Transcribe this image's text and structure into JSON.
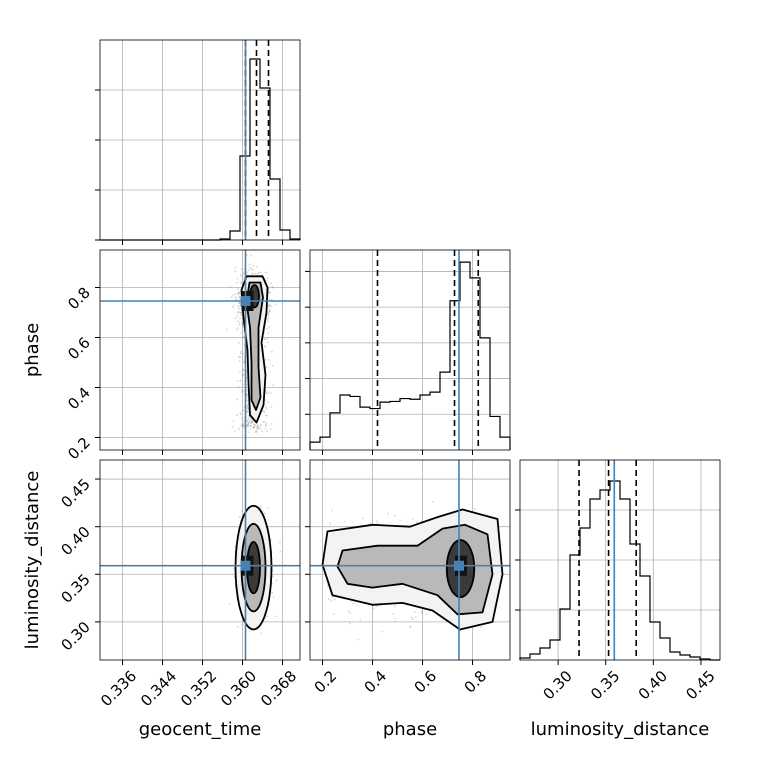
{
  "chart_data": {
    "type": "corner",
    "colors": {
      "truth": "#4682b4",
      "hist": "#000000",
      "grid": "#b0b0b0",
      "points": "#8a8a8a"
    },
    "params": [
      {
        "name": "geocent_time",
        "label": "geocent_time",
        "lim": [
          0.3315,
          0.3715
        ],
        "ticks": [
          0.336,
          0.344,
          0.352,
          0.36,
          0.368
        ],
        "tick_labels": [
          "0.336",
          "0.344",
          "0.352",
          "0.360",
          "0.368"
        ],
        "truth": 0.3606,
        "quantiles": [
          0.3606,
          0.3628,
          0.3652
        ]
      },
      {
        "name": "phase",
        "label": "phase",
        "lim": [
          0.15,
          0.95
        ],
        "ticks": [
          0.2,
          0.4,
          0.6,
          0.8
        ],
        "tick_labels": [
          "0.2",
          "0.4",
          "0.6",
          "0.8"
        ],
        "truth": 0.746,
        "quantiles": [
          0.42,
          0.728,
          0.823
        ]
      },
      {
        "name": "luminosity_distance",
        "label": "luminosity_distance",
        "lim": [
          0.26,
          0.47
        ],
        "ticks": [
          0.3,
          0.35,
          0.4,
          0.45
        ],
        "tick_labels": [
          "0.30",
          "0.35",
          "0.40",
          "0.45"
        ],
        "truth": 0.359,
        "quantiles": [
          0.322,
          0.353,
          0.382
        ]
      }
    ],
    "histograms": {
      "geocent_time": {
        "edges": [
          0.3315,
          0.3335,
          0.3355,
          0.3375,
          0.3395,
          0.3415,
          0.3435,
          0.3455,
          0.3475,
          0.3495,
          0.3515,
          0.3535,
          0.3555,
          0.3575,
          0.3595,
          0.3615,
          0.3635,
          0.3655,
          0.3675,
          0.3695,
          0.3715
        ],
        "counts": [
          0,
          0,
          0,
          0,
          0,
          0,
          0,
          0,
          0,
          0,
          0,
          0,
          1,
          9,
          84,
          181,
          152,
          61,
          10,
          1
        ],
        "ymax": 200,
        "yticks": [
          0,
          50,
          100,
          150
        ]
      },
      "phase": {
        "edges": [
          0.15,
          0.19,
          0.23,
          0.27,
          0.31,
          0.35,
          0.39,
          0.43,
          0.47,
          0.51,
          0.55,
          0.59,
          0.63,
          0.67,
          0.71,
          0.75,
          0.79,
          0.83,
          0.87,
          0.91,
          0.95
        ],
        "counts": [
          11,
          18,
          52,
          77,
          75,
          60,
          58,
          67,
          68,
          72,
          71,
          77,
          81,
          109,
          209,
          263,
          241,
          157,
          47,
          18
        ],
        "ymax": 280,
        "yticks": [
          50,
          100,
          150,
          200,
          250
        ]
      },
      "luminosity_distance": {
        "edges": [
          0.26,
          0.2705,
          0.281,
          0.2915,
          0.302,
          0.3125,
          0.323,
          0.3335,
          0.344,
          0.3545,
          0.365,
          0.3755,
          0.386,
          0.3965,
          0.407,
          0.4175,
          0.428,
          0.4385,
          0.449,
          0.4595,
          0.47
        ],
        "counts": [
          2,
          6,
          12,
          20,
          51,
          105,
          132,
          161,
          170,
          179,
          161,
          116,
          84,
          38,
          22,
          8,
          5,
          3,
          1,
          0
        ],
        "ymax": 200,
        "yticks": [
          50,
          100,
          150
        ]
      }
    },
    "pairs": [
      {
        "x": "geocent_time",
        "y": "phase"
      },
      {
        "x": "geocent_time",
        "y": "luminosity_distance"
      },
      {
        "x": "phase",
        "y": "luminosity_distance"
      }
    ]
  }
}
